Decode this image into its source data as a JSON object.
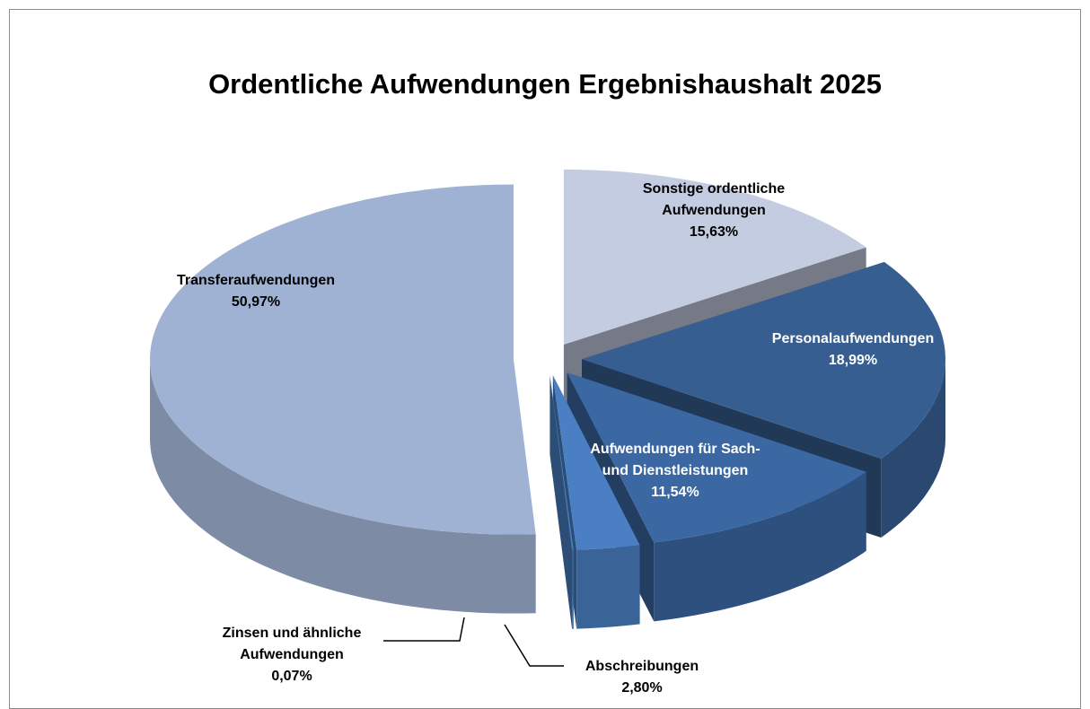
{
  "chart_data": {
    "type": "pie",
    "title": "Ordentliche Aufwendungen Ergebnishaushalt 2025",
    "categories": [
      "Sonstige ordentliche Aufwendungen",
      "Personalaufwendungen",
      "Aufwendungen für Sach- und Dienstleistungen",
      "Abschreibungen",
      "Zinsen und ähnliche Aufwendungen",
      "Transferaufwendungen"
    ],
    "values": [
      15.63,
      18.99,
      11.54,
      2.8,
      0.07,
      50.97
    ],
    "value_labels": [
      "15,63%",
      "18,99%",
      "11,54%",
      "2,80%",
      "0,07%",
      "50,97%"
    ],
    "colors": [
      "#c3cce0",
      "#375e90",
      "#3b67a2",
      "#4a80c3",
      "#4a80c3",
      "#a0b2d4"
    ]
  }
}
